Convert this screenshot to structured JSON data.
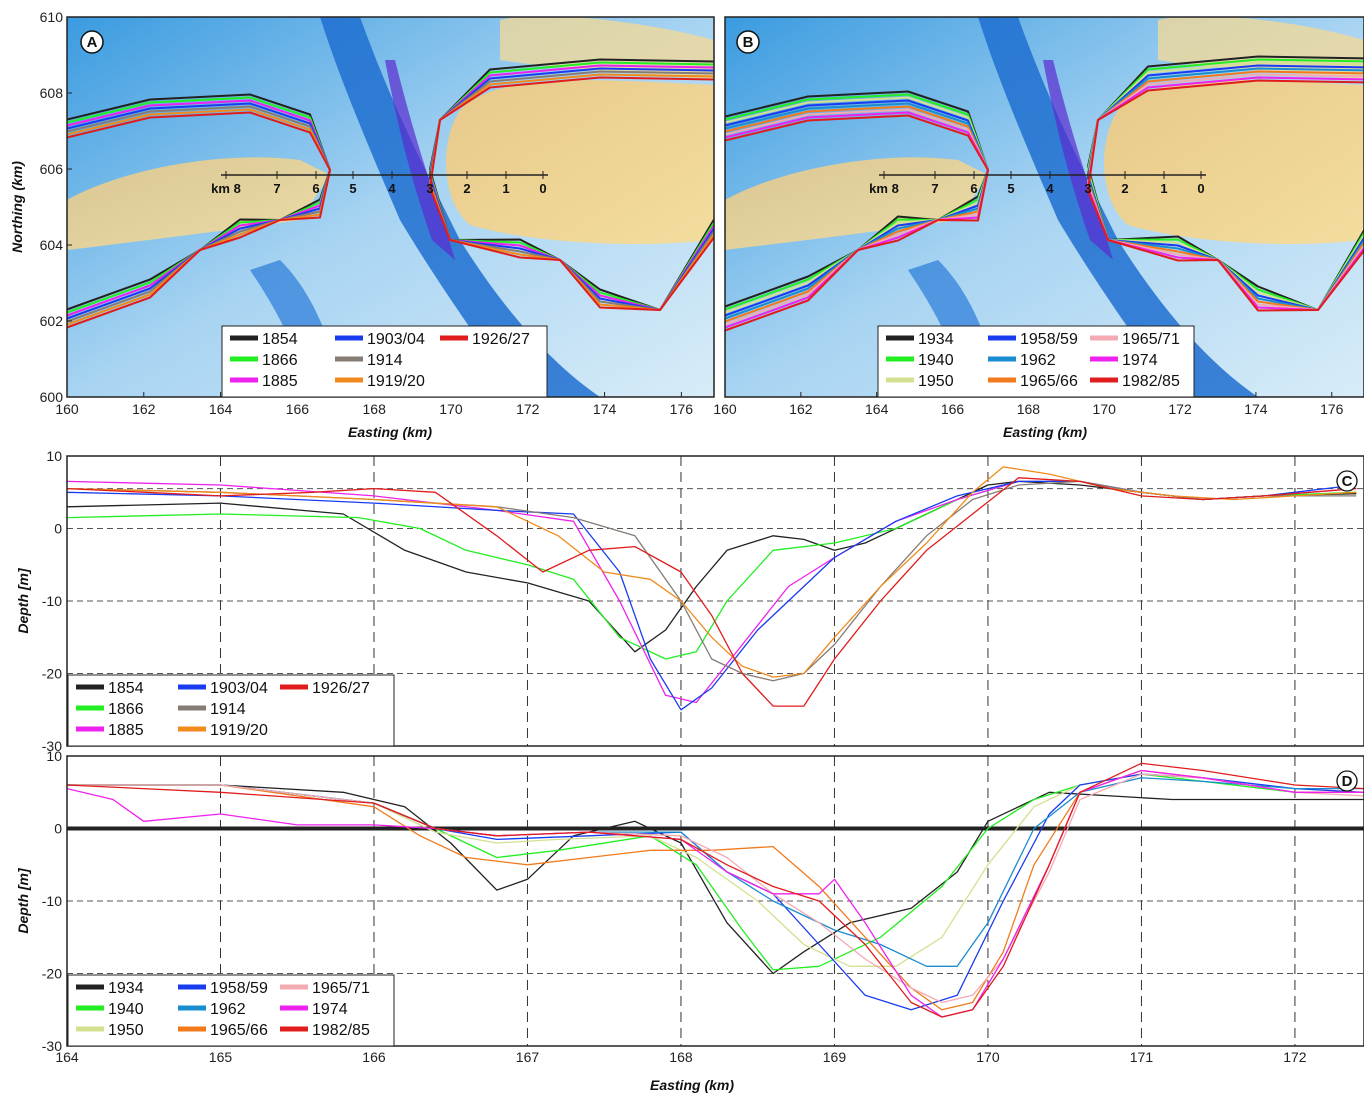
{
  "colors": {
    "1854": "#222222",
    "1866": "#22ee22",
    "1885": "#ee22ee",
    "1903/04": "#1a3cf0",
    "1914": "#857c76",
    "1919/20": "#f08a1c",
    "1926/27": "#e01c1c",
    "1934": "#222222",
    "1940": "#22ee22",
    "1950": "#d4e090",
    "1958/59": "#1a3cf0",
    "1962": "#1a8cd0",
    "1965/66": "#f07a1c",
    "1965/71": "#f3aab2",
    "1974": "#ee22ee",
    "1982/85": "#e01c1c"
  },
  "maps": [
    {
      "label": "A",
      "xlabel": "Easting (km)",
      "ylabel": "Northing (km)",
      "xticks": [
        "160",
        "162",
        "164",
        "166",
        "168",
        "170",
        "172",
        "174",
        "176"
      ],
      "yticks": [
        "600",
        "602",
        "604",
        "606",
        "608",
        "610"
      ],
      "km_marks": [
        "km 8",
        "7",
        "6",
        "5",
        "4",
        "3",
        "2",
        "1",
        "0"
      ],
      "legend": [
        "1854",
        "1866",
        "1885",
        "1903/04",
        "1914",
        "1919/20",
        "1926/27"
      ]
    },
    {
      "label": "B",
      "xlabel": "Easting (km)",
      "ylabel": "",
      "xticks": [
        "160",
        "162",
        "164",
        "166",
        "168",
        "170",
        "172",
        "174",
        "176"
      ],
      "yticks": [],
      "km_marks": [
        "km 8",
        "7",
        "6",
        "5",
        "4",
        "3",
        "2",
        "1",
        "0"
      ],
      "legend": [
        "1934",
        "1940",
        "1950",
        "1958/59",
        "1962",
        "1965/66",
        "1965/71",
        "1974",
        "1982/85"
      ]
    }
  ],
  "chart_data": [
    {
      "type": "line",
      "label": "C",
      "xlabel": "",
      "ylabel": "Depth [m]",
      "xlim": [
        164,
        172.45
      ],
      "ylim": [
        -30,
        10
      ],
      "xticks": [
        164,
        165,
        166,
        167,
        168,
        169,
        170,
        171,
        172
      ],
      "yticks": [
        -30,
        -20,
        -10,
        0,
        10
      ],
      "grid": true,
      "legend_position": "bottom-left",
      "series": [
        {
          "name": "1854",
          "x": [
            164,
            165,
            165.8,
            166.2,
            166.6,
            167,
            167.4,
            167.7,
            167.9,
            168.1,
            168.3,
            168.6,
            168.8,
            169.0,
            169.2,
            169.6,
            170.0,
            170.2,
            170.6,
            171,
            171.4,
            171.8,
            172.4
          ],
          "y": [
            3,
            3.5,
            2,
            -3,
            -6,
            -7.5,
            -10,
            -17,
            -14,
            -8,
            -3,
            -1,
            -1.5,
            -3,
            -2,
            2,
            6,
            6.5,
            6,
            5,
            4,
            4.5,
            4.8
          ]
        },
        {
          "name": "1866",
          "x": [
            164,
            165,
            165.9,
            166.3,
            166.6,
            167,
            167.3,
            167.6,
            167.9,
            168.1,
            168.3,
            168.6,
            169.0,
            169.4,
            169.8,
            170.2,
            170.6,
            171,
            171.4,
            171.8,
            172.4
          ],
          "y": [
            1.5,
            2,
            1.5,
            0,
            -3,
            -5,
            -7,
            -15,
            -18,
            -17,
            -10,
            -3,
            -2,
            0,
            4,
            6.5,
            6.5,
            5,
            4,
            4.5,
            5
          ]
        },
        {
          "name": "1885",
          "x": [
            164,
            165,
            166,
            166.8,
            167.3,
            167.6,
            167.9,
            168.1,
            168.4,
            168.7,
            169.0,
            169.4,
            169.8,
            170.2,
            170.6,
            171,
            171.4,
            171.8,
            172.4
          ],
          "y": [
            6.5,
            6,
            4.5,
            2.5,
            1,
            -10,
            -23,
            -24,
            -16,
            -8,
            -4,
            1,
            4,
            6.5,
            6.5,
            5,
            4,
            4.5,
            5.5
          ]
        },
        {
          "name": "1903/04",
          "x": [
            164,
            165,
            166,
            166.8,
            167.3,
            167.6,
            167.8,
            168.0,
            168.2,
            168.5,
            168.8,
            169.0,
            169.4,
            169.8,
            170.2,
            170.6,
            171,
            171.4,
            171.8,
            172.4
          ],
          "y": [
            5,
            4.5,
            3.5,
            2.5,
            2,
            -6,
            -18,
            -25,
            -22,
            -14,
            -8,
            -4,
            1,
            4.5,
            6.5,
            6.5,
            5,
            4,
            4.5,
            6
          ]
        },
        {
          "name": "1914",
          "x": [
            164,
            165,
            166,
            166.8,
            167.3,
            167.7,
            168.0,
            168.2,
            168.4,
            168.6,
            168.8,
            169.0,
            169.3,
            169.6,
            169.9,
            170.2,
            170.6,
            171,
            171.4,
            171.8,
            172.4
          ],
          "y": [
            5.5,
            5,
            4,
            3,
            1.5,
            -1,
            -10,
            -18,
            -20,
            -21,
            -20,
            -16,
            -8,
            -1,
            4,
            6,
            6.5,
            5,
            4,
            4.5,
            4.5
          ]
        },
        {
          "name": "1919/20",
          "x": [
            164,
            165,
            166,
            166.8,
            167.2,
            167.5,
            167.8,
            168.0,
            168.2,
            168.4,
            168.6,
            168.8,
            169.0,
            169.3,
            169.6,
            169.9,
            170.1,
            170.4,
            170.8,
            171.2,
            171.6,
            172,
            172.4
          ],
          "y": [
            5.5,
            5,
            4,
            3,
            -1,
            -6,
            -7,
            -10,
            -15,
            -19,
            -20.5,
            -20,
            -15,
            -8,
            -2,
            5,
            8.5,
            7.5,
            5.5,
            4.5,
            4,
            4.5,
            5
          ]
        },
        {
          "name": "1926/27",
          "x": [
            164,
            165,
            165.6,
            166.0,
            166.4,
            166.8,
            167.1,
            167.4,
            167.7,
            168.0,
            168.2,
            168.4,
            168.6,
            168.8,
            169.0,
            169.3,
            169.6,
            169.9,
            170.2,
            170.6,
            171,
            171.4,
            171.8,
            172.4
          ],
          "y": [
            5.5,
            4.5,
            5,
            5.5,
            5,
            -1,
            -6,
            -3,
            -2.5,
            -6,
            -12,
            -20,
            -24.5,
            -24.5,
            -18,
            -10,
            -3,
            2,
            7,
            6.5,
            4.5,
            4,
            4.5,
            5.5
          ]
        }
      ]
    },
    {
      "type": "line",
      "label": "D",
      "xlabel": "Easting (km)",
      "ylabel": "Depth [m]",
      "xlim": [
        164,
        172.45
      ],
      "ylim": [
        -30,
        10
      ],
      "xticks": [
        164,
        165,
        166,
        167,
        168,
        169,
        170,
        171,
        172
      ],
      "yticks": [
        -30,
        -20,
        -10,
        0,
        10
      ],
      "grid": true,
      "legend_position": "bottom-left",
      "series": [
        {
          "name": "1934",
          "x": [
            164,
            165,
            165.8,
            166.2,
            166.5,
            166.8,
            167.0,
            167.3,
            167.7,
            168.0,
            168.3,
            168.6,
            168.8,
            169.1,
            169.5,
            169.8,
            170.0,
            170.4,
            170.8,
            171.2,
            171.6,
            172,
            172.45
          ],
          "y": [
            6,
            6,
            5,
            3,
            -2,
            -8.5,
            -7,
            -1,
            1,
            -2,
            -13,
            -20,
            -17,
            -13,
            -11,
            -6,
            1,
            5,
            4.5,
            4,
            4,
            4,
            4
          ]
        },
        {
          "name": "1940",
          "x": [
            164,
            165,
            166,
            166.4,
            166.8,
            167.2,
            167.8,
            168.1,
            168.4,
            168.6,
            168.9,
            169.3,
            169.7,
            170.0,
            170.3,
            170.6,
            171,
            171.4,
            172,
            172.45
          ],
          "y": [
            6,
            6,
            3.5,
            0,
            -4,
            -3,
            -1,
            -5,
            -14,
            -19.5,
            -19,
            -15,
            -8,
            0,
            4,
            6,
            7.5,
            6.5,
            5,
            5
          ]
        },
        {
          "name": "1950",
          "x": [
            164,
            165,
            166,
            166.4,
            166.8,
            167.2,
            167.8,
            168.1,
            168.5,
            168.8,
            169.1,
            169.4,
            169.7,
            170.0,
            170.3,
            170.6,
            171,
            171.4,
            172,
            172.45
          ],
          "y": [
            6,
            6,
            3.5,
            -0.5,
            -2,
            -1.5,
            -1,
            -4,
            -10,
            -16,
            -19,
            -19,
            -15,
            -5,
            3,
            6,
            7.5,
            7,
            5,
            5
          ]
        },
        {
          "name": "1958/59",
          "x": [
            164,
            165,
            166,
            166.4,
            166.8,
            167.4,
            168.0,
            168.3,
            168.6,
            168.9,
            169.2,
            169.5,
            169.8,
            170.1,
            170.4,
            170.6,
            171,
            171.4,
            172,
            172.45
          ],
          "y": [
            6,
            6,
            3.5,
            0,
            -1.5,
            -1,
            -0.5,
            -6,
            -9,
            -16,
            -23,
            -25,
            -23,
            -10,
            2,
            6,
            7.5,
            7,
            5.5,
            5
          ]
        },
        {
          "name": "1962",
          "x": [
            164,
            165,
            166,
            166.4,
            166.8,
            167.4,
            168.0,
            168.3,
            168.6,
            169.0,
            169.3,
            169.6,
            169.8,
            170.0,
            170.3,
            170.6,
            171,
            171.4,
            172,
            172.45
          ],
          "y": [
            6,
            6,
            3.5,
            0,
            -1,
            -0.5,
            -0.5,
            -6,
            -10,
            -14,
            -16,
            -19,
            -19,
            -13,
            0,
            5,
            7,
            6.5,
            5.5,
            5.5
          ]
        },
        {
          "name": "1965/66",
          "x": [
            164,
            165,
            166,
            166.3,
            166.6,
            167.0,
            167.4,
            167.8,
            168.2,
            168.6,
            168.9,
            169.2,
            169.5,
            169.7,
            169.9,
            170.1,
            170.3,
            170.6,
            171,
            171.4,
            172,
            172.45
          ],
          "y": [
            6,
            6,
            3,
            -1,
            -4,
            -5,
            -4,
            -3,
            -3,
            -2.5,
            -8,
            -15,
            -22,
            -25,
            -24,
            -17,
            -5,
            5,
            8,
            7,
            5,
            5
          ]
        },
        {
          "name": "1965/71",
          "x": [
            164,
            165,
            166,
            166.4,
            166.8,
            167.4,
            168.0,
            168.3,
            168.6,
            168.9,
            169.2,
            169.5,
            169.7,
            169.9,
            170.1,
            170.4,
            170.6,
            171,
            171.4,
            172,
            172.45
          ],
          "y": [
            6,
            6,
            3.5,
            0,
            -1,
            -0.5,
            -1,
            -4,
            -9,
            -13,
            -18,
            -22,
            -24,
            -23,
            -18,
            -6,
            4,
            7.5,
            7,
            5,
            4.5
          ]
        },
        {
          "name": "1974",
          "x": [
            164,
            164.3,
            164.5,
            165,
            165.5,
            166,
            166.4,
            166.8,
            167.4,
            168.0,
            168.3,
            168.6,
            168.9,
            169.0,
            169.2,
            169.5,
            169.7,
            169.9,
            170.1,
            170.4,
            170.6,
            171,
            171.4,
            172,
            172.45
          ],
          "y": [
            5.5,
            4,
            1,
            2,
            0.5,
            0.5,
            0,
            -1,
            -0.5,
            -1.5,
            -6,
            -9,
            -9,
            -7,
            -13,
            -23,
            -26,
            -25,
            -18,
            -5,
            5,
            8,
            7,
            5,
            5
          ]
        },
        {
          "name": "1982/85",
          "x": [
            164,
            165,
            166,
            166.4,
            166.8,
            167.4,
            168.0,
            168.3,
            168.6,
            168.9,
            169.2,
            169.5,
            169.7,
            169.9,
            170.1,
            170.4,
            170.6,
            171,
            171.4,
            172,
            172.45
          ],
          "y": [
            6,
            5,
            3.5,
            0,
            -1,
            -0.5,
            -1.5,
            -5,
            -8,
            -10,
            -16,
            -24,
            -26,
            -25,
            -19,
            -5,
            5,
            9,
            8,
            6,
            5.5
          ]
        }
      ]
    }
  ]
}
